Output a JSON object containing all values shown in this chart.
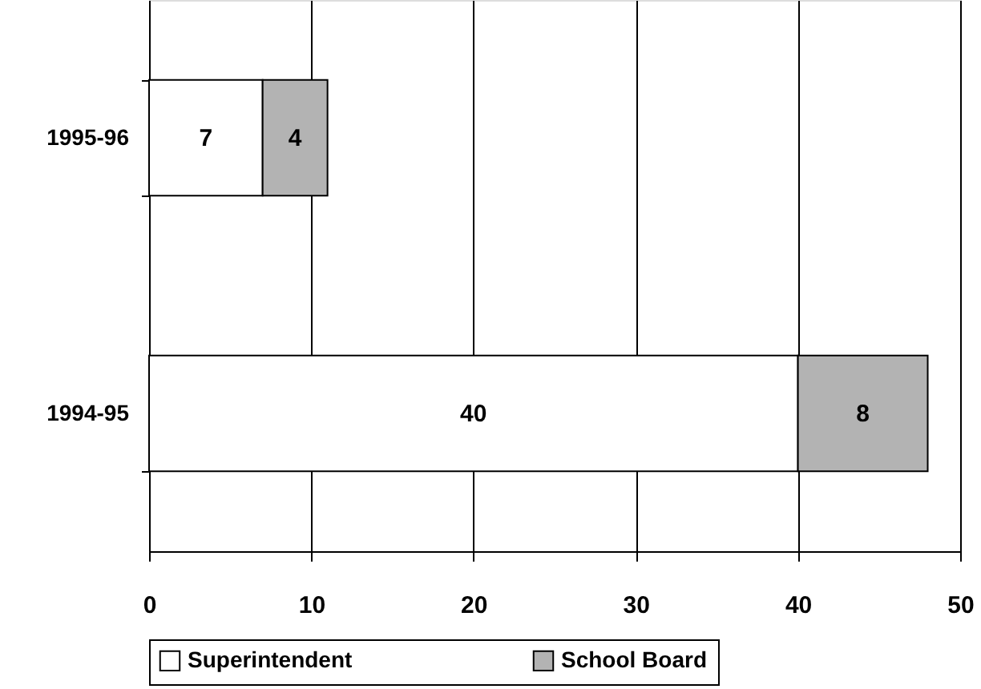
{
  "chart_data": {
    "type": "bar",
    "orientation": "horizontal",
    "stacked": true,
    "categories": [
      "1995-96",
      "1994-95"
    ],
    "series": [
      {
        "name": "Superintendent",
        "color": "#ffffff",
        "values": [
          7,
          40
        ]
      },
      {
        "name": "School Board",
        "color": "#b3b3b3",
        "values": [
          4,
          8
        ]
      }
    ],
    "xlim": [
      0,
      50
    ],
    "xticks": [
      0,
      10,
      20,
      30,
      40,
      50
    ],
    "grid": "x",
    "legend": "bottom",
    "data_labels": true
  }
}
